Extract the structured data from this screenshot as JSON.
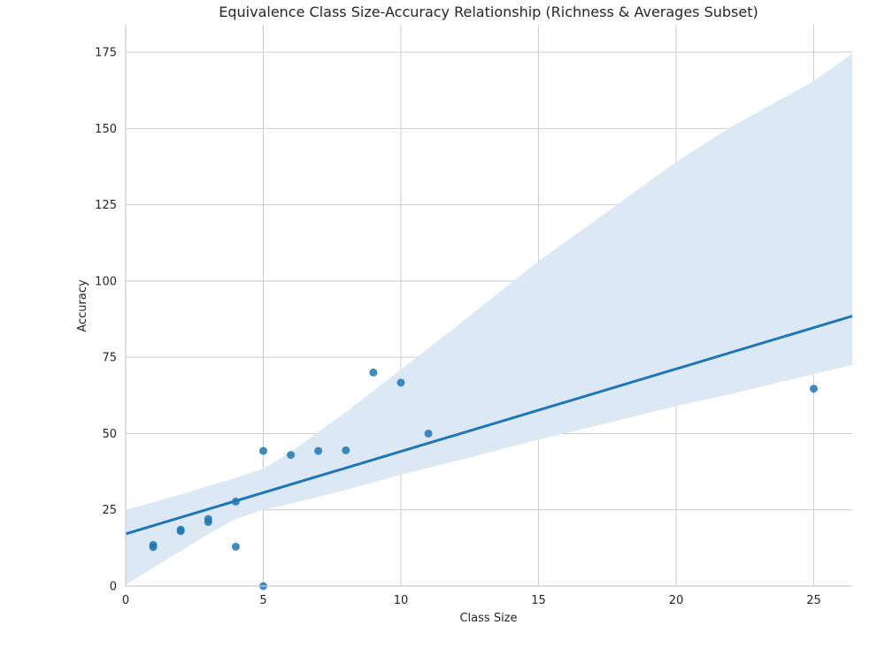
{
  "chart_data": {
    "type": "scatter",
    "title": "Equivalence Class Size-Accuracy Relationship (Richness & Averages Subset)",
    "xlabel": "Class Size",
    "ylabel": "Accuracy",
    "xlim": [
      0,
      26.4
    ],
    "ylim": [
      0,
      184
    ],
    "xticks": [
      0,
      5,
      10,
      15,
      20,
      25
    ],
    "yticks": [
      0,
      25,
      50,
      75,
      100,
      125,
      150,
      175
    ],
    "grid": true,
    "colors": {
      "points": "#1f77b4",
      "line": "#1f77b4",
      "band": "#dce9f4",
      "grid": "#cccccc",
      "text": "#262626"
    },
    "points": [
      {
        "x": 1,
        "y": 13.5
      },
      {
        "x": 1,
        "y": 12.8
      },
      {
        "x": 2,
        "y": 18.5
      },
      {
        "x": 2,
        "y": 18.0
      },
      {
        "x": 3,
        "y": 22.0
      },
      {
        "x": 3,
        "y": 21.0
      },
      {
        "x": 4,
        "y": 27.7
      },
      {
        "x": 4,
        "y": 12.9
      },
      {
        "x": 5,
        "y": 44.3
      },
      {
        "x": 5,
        "y": 0.0
      },
      {
        "x": 6,
        "y": 43.0
      },
      {
        "x": 7,
        "y": 44.3
      },
      {
        "x": 8,
        "y": 44.5
      },
      {
        "x": 9,
        "y": 70.0
      },
      {
        "x": 10,
        "y": 66.7
      },
      {
        "x": 11,
        "y": 50.0
      },
      {
        "x": 25,
        "y": 64.7
      }
    ],
    "regression_line": {
      "x": [
        0,
        26.4
      ],
      "y": [
        17.1,
        88.5
      ]
    },
    "confidence_band": {
      "x": [
        0,
        1,
        2,
        3,
        4,
        5,
        6,
        8,
        10,
        12,
        15,
        18,
        20,
        22,
        25,
        26.4
      ],
      "upper": [
        25.0,
        27.5,
        30.0,
        32.8,
        35.5,
        38.5,
        44.0,
        57.0,
        71.0,
        85.0,
        106.5,
        126.0,
        139.0,
        150.5,
        165.5,
        174.5
      ],
      "lower": [
        0.5,
        6.0,
        11.5,
        17.0,
        22.0,
        25.0,
        27.0,
        31.5,
        36.5,
        41.0,
        48.0,
        54.5,
        59.0,
        63.0,
        69.5,
        72.5
      ]
    }
  }
}
